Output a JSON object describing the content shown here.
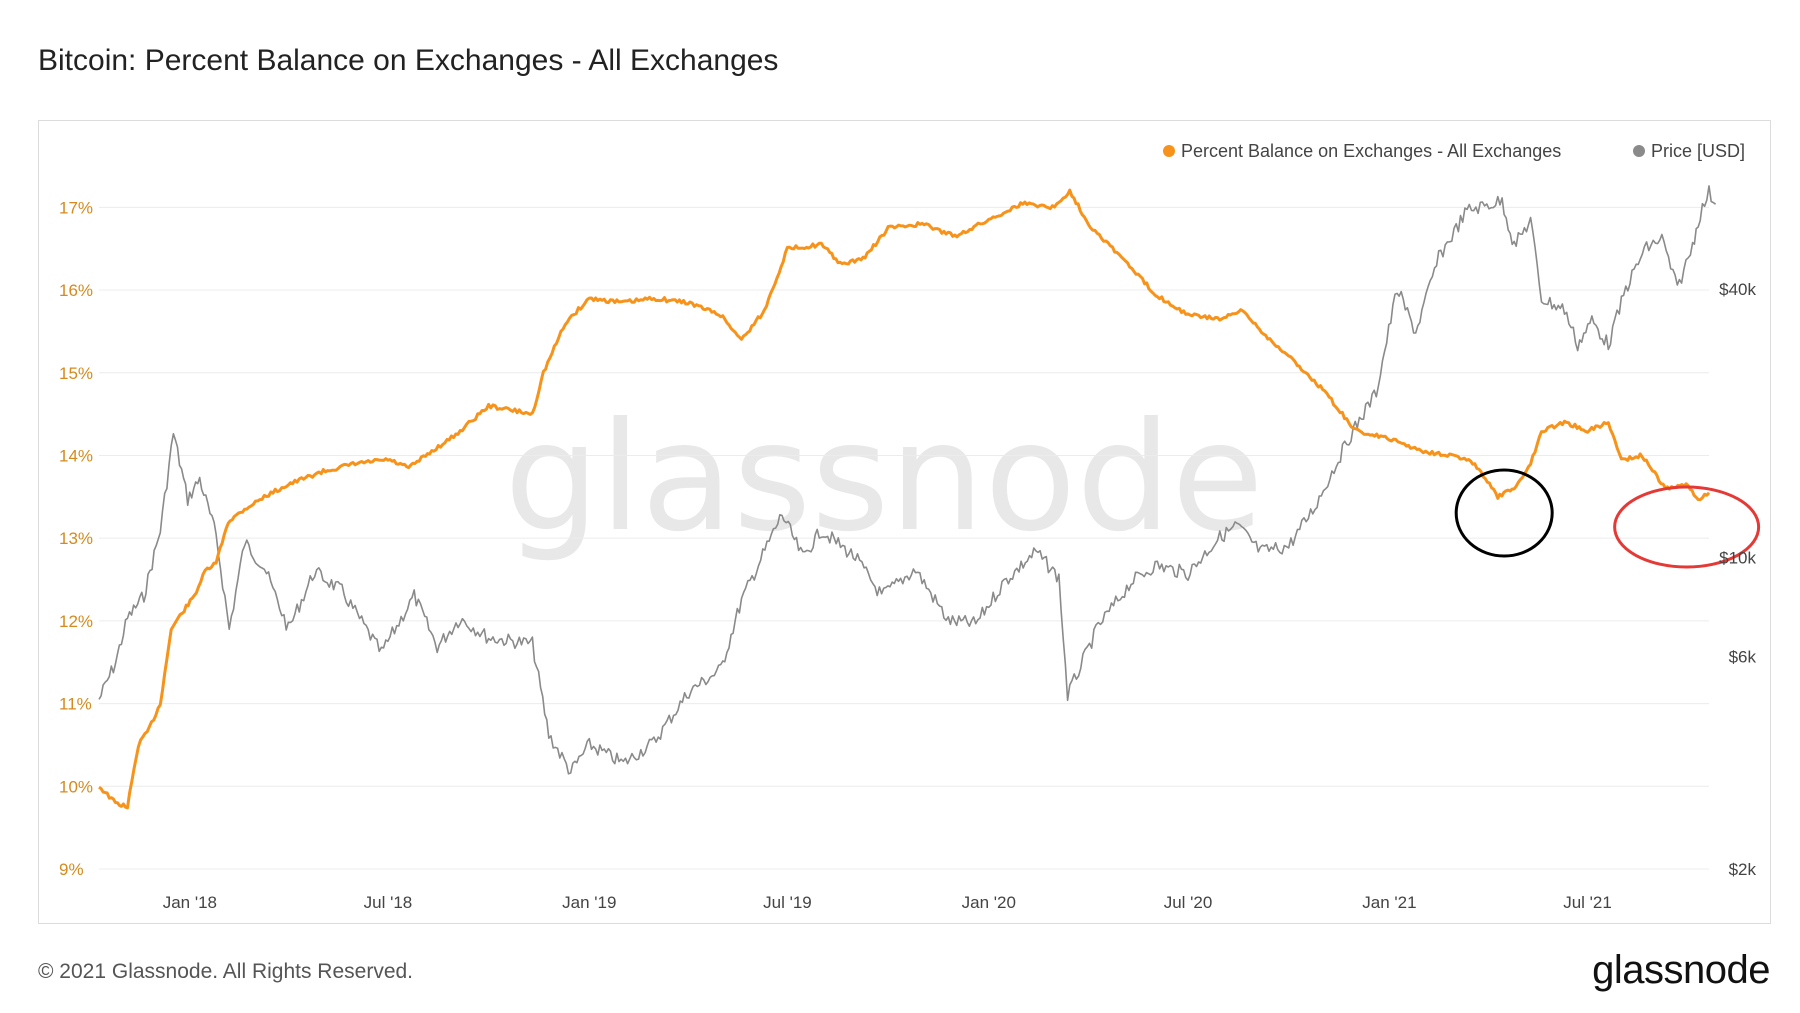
{
  "title": "Bitcoin: Percent Balance on Exchanges - All Exchanges",
  "footer": {
    "copyright": "© 2021 Glassnode. All Rights Reserved.",
    "brand": "glassnode"
  },
  "watermark": "glassnode",
  "colors": {
    "balance": "#f7931a",
    "price": "#8a8a8a",
    "grid": "#ececec",
    "black_circle": "#000000",
    "red_circle": "#e53935"
  },
  "chart_data": {
    "type": "line",
    "legend": [
      {
        "label": "Percent Balance on Exchanges - All Exchanges",
        "color": "#f7931a"
      },
      {
        "label": "Price [USD]",
        "color": "#8a8a8a"
      }
    ],
    "legend_position": "top-right",
    "grid": true,
    "x_range": [
      "2017-10-10",
      "2021-10-20"
    ],
    "x_ticks": [
      {
        "date": "2018-01-01",
        "label": "Jan '18"
      },
      {
        "date": "2018-07-01",
        "label": "Jul '18"
      },
      {
        "date": "2019-01-01",
        "label": "Jan '19"
      },
      {
        "date": "2019-07-01",
        "label": "Jul '19"
      },
      {
        "date": "2020-01-01",
        "label": "Jan '20"
      },
      {
        "date": "2020-07-01",
        "label": "Jul '20"
      },
      {
        "date": "2021-01-01",
        "label": "Jan '21"
      },
      {
        "date": "2021-07-01",
        "label": "Jul '21"
      }
    ],
    "y_left": {
      "range": [
        9,
        17.5
      ],
      "ticks": [
        9,
        10,
        11,
        12,
        13,
        14,
        15,
        16,
        17
      ],
      "labels": [
        "9%",
        "10%",
        "11%",
        "12%",
        "13%",
        "14%",
        "15%",
        "16%",
        "17%"
      ]
    },
    "y_right": {
      "scale": "log",
      "ticks": [
        2000,
        6000,
        10000,
        40000
      ],
      "labels": [
        "$2k",
        "$6k",
        "$10k",
        "$40k"
      ]
    },
    "series": [
      {
        "name": "Percent Balance on Exchanges - All Exchanges",
        "axis": "left",
        "points": [
          [
            "2017-10-10",
            10.0
          ],
          [
            "2017-10-25",
            9.8
          ],
          [
            "2017-11-05",
            9.75
          ],
          [
            "2017-11-15",
            10.5
          ],
          [
            "2017-11-25",
            10.7
          ],
          [
            "2017-12-05",
            11.0
          ],
          [
            "2017-12-15",
            11.9
          ],
          [
            "2017-12-25",
            12.1
          ],
          [
            "2018-01-05",
            12.3
          ],
          [
            "2018-01-15",
            12.6
          ],
          [
            "2018-01-25",
            12.7
          ],
          [
            "2018-02-05",
            13.2
          ],
          [
            "2018-02-20",
            13.35
          ],
          [
            "2018-03-10",
            13.5
          ],
          [
            "2018-04-01",
            13.65
          ],
          [
            "2018-05-01",
            13.8
          ],
          [
            "2018-06-01",
            13.9
          ],
          [
            "2018-07-01",
            13.95
          ],
          [
            "2018-07-20",
            13.85
          ],
          [
            "2018-08-10",
            14.05
          ],
          [
            "2018-09-01",
            14.25
          ],
          [
            "2018-10-01",
            14.6
          ],
          [
            "2018-11-10",
            14.5
          ],
          [
            "2018-11-20",
            15.0
          ],
          [
            "2018-12-10",
            15.6
          ],
          [
            "2019-01-01",
            15.9
          ],
          [
            "2019-02-01",
            15.85
          ],
          [
            "2019-03-01",
            15.9
          ],
          [
            "2019-04-01",
            15.85
          ],
          [
            "2019-05-01",
            15.7
          ],
          [
            "2019-05-20",
            15.4
          ],
          [
            "2019-06-10",
            15.75
          ],
          [
            "2019-07-01",
            16.5
          ],
          [
            "2019-08-01",
            16.55
          ],
          [
            "2019-08-20",
            16.3
          ],
          [
            "2019-09-10",
            16.4
          ],
          [
            "2019-10-01",
            16.75
          ],
          [
            "2019-11-01",
            16.8
          ],
          [
            "2019-12-01",
            16.65
          ],
          [
            "2020-01-01",
            16.85
          ],
          [
            "2020-02-01",
            17.05
          ],
          [
            "2020-03-01",
            17.0
          ],
          [
            "2020-03-15",
            17.2
          ],
          [
            "2020-04-01",
            16.8
          ],
          [
            "2020-05-01",
            16.4
          ],
          [
            "2020-06-01",
            15.95
          ],
          [
            "2020-07-01",
            15.7
          ],
          [
            "2020-08-01",
            15.65
          ],
          [
            "2020-08-20",
            15.75
          ],
          [
            "2020-09-10",
            15.45
          ],
          [
            "2020-10-01",
            15.2
          ],
          [
            "2020-11-01",
            14.8
          ],
          [
            "2020-12-01",
            14.3
          ],
          [
            "2021-01-01",
            14.2
          ],
          [
            "2021-02-01",
            14.05
          ],
          [
            "2021-03-01",
            14.0
          ],
          [
            "2021-03-20",
            13.9
          ],
          [
            "2021-04-10",
            13.5
          ],
          [
            "2021-04-25",
            13.6
          ],
          [
            "2021-05-10",
            13.9
          ],
          [
            "2021-05-20",
            14.3
          ],
          [
            "2021-06-10",
            14.4
          ],
          [
            "2021-07-01",
            14.3
          ],
          [
            "2021-07-20",
            14.4
          ],
          [
            "2021-08-01",
            13.95
          ],
          [
            "2021-08-20",
            14.0
          ],
          [
            "2021-09-10",
            13.6
          ],
          [
            "2021-10-01",
            13.65
          ],
          [
            "2021-10-10",
            13.45
          ],
          [
            "2021-10-20",
            13.55
          ]
        ]
      },
      {
        "name": "Price [USD]",
        "axis": "right",
        "points": [
          [
            "2017-10-10",
            4800
          ],
          [
            "2017-10-25",
            5800
          ],
          [
            "2017-11-05",
            7300
          ],
          [
            "2017-11-20",
            8200
          ],
          [
            "2017-12-05",
            11500
          ],
          [
            "2017-12-17",
            19000
          ],
          [
            "2017-12-30",
            13500
          ],
          [
            "2018-01-10",
            15000
          ],
          [
            "2018-01-25",
            11200
          ],
          [
            "2018-02-06",
            6900
          ],
          [
            "2018-02-20",
            10800
          ],
          [
            "2018-03-10",
            9500
          ],
          [
            "2018-04-01",
            6900
          ],
          [
            "2018-04-25",
            9300
          ],
          [
            "2018-05-20",
            8400
          ],
          [
            "2018-06-25",
            6100
          ],
          [
            "2018-07-25",
            8200
          ],
          [
            "2018-08-15",
            6300
          ],
          [
            "2018-09-05",
            7300
          ],
          [
            "2018-10-01",
            6600
          ],
          [
            "2018-11-10",
            6400
          ],
          [
            "2018-11-25",
            4000
          ],
          [
            "2018-12-15",
            3300
          ],
          [
            "2019-01-01",
            3800
          ],
          [
            "2019-02-01",
            3450
          ],
          [
            "2019-03-01",
            3850
          ],
          [
            "2019-04-02",
            5000
          ],
          [
            "2019-05-01",
            5600
          ],
          [
            "2019-05-20",
            8000
          ],
          [
            "2019-06-26",
            12500
          ],
          [
            "2019-07-15",
            10000
          ],
          [
            "2019-08-01",
            11500
          ],
          [
            "2019-09-01",
            10000
          ],
          [
            "2019-09-25",
            8200
          ],
          [
            "2019-10-26",
            9400
          ],
          [
            "2019-11-25",
            7200
          ],
          [
            "2019-12-20",
            7100
          ],
          [
            "2020-01-15",
            8800
          ],
          [
            "2020-02-13",
            10300
          ],
          [
            "2020-03-05",
            9000
          ],
          [
            "2020-03-13",
            4900
          ],
          [
            "2020-04-10",
            7000
          ],
          [
            "2020-05-10",
            8800
          ],
          [
            "2020-06-01",
            9600
          ],
          [
            "2020-07-01",
            9200
          ],
          [
            "2020-07-28",
            11000
          ],
          [
            "2020-08-15",
            11800
          ],
          [
            "2020-09-05",
            10300
          ],
          [
            "2020-10-01",
            10600
          ],
          [
            "2020-10-25",
            13000
          ],
          [
            "2020-11-25",
            18500
          ],
          [
            "2020-12-20",
            23500
          ],
          [
            "2021-01-08",
            40000
          ],
          [
            "2021-01-25",
            32000
          ],
          [
            "2021-02-15",
            47000
          ],
          [
            "2021-03-13",
            60000
          ],
          [
            "2021-04-14",
            63000
          ],
          [
            "2021-04-25",
            50000
          ],
          [
            "2021-05-10",
            57000
          ],
          [
            "2021-05-20",
            38000
          ],
          [
            "2021-06-10",
            36000
          ],
          [
            "2021-06-22",
            30000
          ],
          [
            "2021-07-05",
            34000
          ],
          [
            "2021-07-20",
            30000
          ],
          [
            "2021-08-05",
            40000
          ],
          [
            "2021-08-22",
            49000
          ],
          [
            "2021-09-07",
            52000
          ],
          [
            "2021-09-21",
            40000
          ],
          [
            "2021-10-05",
            50000
          ],
          [
            "2021-10-10",
            57000
          ],
          [
            "2021-10-20",
            66000
          ],
          [
            "2021-10-26",
            62000
          ]
        ]
      }
    ],
    "annotations": [
      {
        "shape": "ellipse",
        "color": "black",
        "around": "2021-04-25"
      },
      {
        "shape": "ellipse",
        "color": "red",
        "around": "2021-09-25"
      }
    ]
  }
}
